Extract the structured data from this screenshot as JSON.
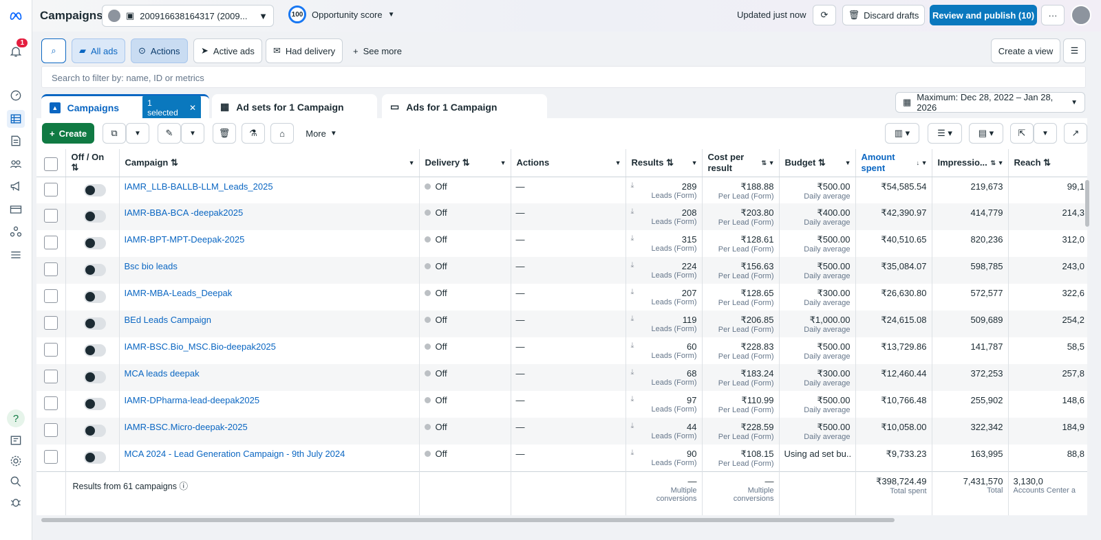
{
  "header": {
    "title": "Campaigns",
    "account_id": "200916638164317 (2009...",
    "opportunity_score": "100",
    "opportunity_label": "Opportunity score",
    "updated": "Updated just now",
    "discard": "Discard drafts",
    "publish": "Review and publish (10)",
    "more": "···"
  },
  "sidebar": {
    "notif_count": "1"
  },
  "filters": {
    "all_ads": "All ads",
    "actions": "Actions",
    "active_ads": "Active ads",
    "had_delivery": "Had delivery",
    "see_more": "See more",
    "create_view": "Create a view"
  },
  "search": {
    "placeholder": "Search to filter by: name, ID or metrics"
  },
  "tabs": {
    "campaigns": "Campaigns",
    "selected": "1 selected",
    "ad_sets": "Ad sets for 1 Campaign",
    "ads": "Ads for 1 Campaign"
  },
  "date_range": "Maximum: Dec 28, 2022 – Jan 28, 2026",
  "toolbar": {
    "create": "Create",
    "more": "More"
  },
  "columns": {
    "offon": "Off / On",
    "campaign": "Campaign",
    "delivery": "Delivery",
    "actions": "Actions",
    "results": "Results",
    "cost": "Cost per result",
    "budget": "Budget",
    "amount": "Amount spent",
    "impressions": "Impressio...",
    "reach": "Reach"
  },
  "rows": [
    {
      "name": "IAMR_LLB-BALLB-LLM_Leads_2025",
      "delivery": "Off",
      "actions": "—",
      "results": "289",
      "results_sub": "Leads (Form)",
      "cost": "₹188.88",
      "cost_sub": "Per Lead (Form)",
      "budget": "₹500.00",
      "budget_sub": "Daily average",
      "amount": "₹54,585.54",
      "impressions": "219,673",
      "reach": "99,1"
    },
    {
      "name": "IAMR-BBA-BCA -deepak2025",
      "delivery": "Off",
      "actions": "—",
      "results": "208",
      "results_sub": "Leads (Form)",
      "cost": "₹203.80",
      "cost_sub": "Per Lead (Form)",
      "budget": "₹400.00",
      "budget_sub": "Daily average",
      "amount": "₹42,390.97",
      "impressions": "414,779",
      "reach": "214,3"
    },
    {
      "name": "IAMR-BPT-MPT-Deepak-2025",
      "delivery": "Off",
      "actions": "—",
      "results": "315",
      "results_sub": "Leads (Form)",
      "cost": "₹128.61",
      "cost_sub": "Per Lead (Form)",
      "budget": "₹500.00",
      "budget_sub": "Daily average",
      "amount": "₹40,510.65",
      "impressions": "820,236",
      "reach": "312,0"
    },
    {
      "name": "Bsc bio leads",
      "delivery": "Off",
      "actions": "—",
      "results": "224",
      "results_sub": "Leads (Form)",
      "cost": "₹156.63",
      "cost_sub": "Per Lead (Form)",
      "budget": "₹500.00",
      "budget_sub": "Daily average",
      "amount": "₹35,084.07",
      "impressions": "598,785",
      "reach": "243,0"
    },
    {
      "name": "IAMR-MBA-Leads_Deepak",
      "delivery": "Off",
      "actions": "—",
      "results": "207",
      "results_sub": "Leads (Form)",
      "cost": "₹128.65",
      "cost_sub": "Per Lead (Form)",
      "budget": "₹300.00",
      "budget_sub": "Daily average",
      "amount": "₹26,630.80",
      "impressions": "572,577",
      "reach": "322,6"
    },
    {
      "name": "BEd Leads Campaign",
      "delivery": "Off",
      "actions": "—",
      "results": "119",
      "results_sub": "Leads (Form)",
      "cost": "₹206.85",
      "cost_sub": "Per Lead (Form)",
      "budget": "₹1,000.00",
      "budget_sub": "Daily average",
      "amount": "₹24,615.08",
      "impressions": "509,689",
      "reach": "254,2"
    },
    {
      "name": "IAMR-BSC.Bio_MSC.Bio-deepak2025",
      "delivery": "Off",
      "actions": "—",
      "results": "60",
      "results_sub": "Leads (Form)",
      "cost": "₹228.83",
      "cost_sub": "Per Lead (Form)",
      "budget": "₹500.00",
      "budget_sub": "Daily average",
      "amount": "₹13,729.86",
      "impressions": "141,787",
      "reach": "58,5"
    },
    {
      "name": "MCA leads deepak",
      "delivery": "Off",
      "actions": "—",
      "results": "68",
      "results_sub": "Leads (Form)",
      "cost": "₹183.24",
      "cost_sub": "Per Lead (Form)",
      "budget": "₹300.00",
      "budget_sub": "Daily average",
      "amount": "₹12,460.44",
      "impressions": "372,253",
      "reach": "257,8"
    },
    {
      "name": "IAMR-DPharma-lead-deepak2025",
      "delivery": "Off",
      "actions": "—",
      "results": "97",
      "results_sub": "Leads (Form)",
      "cost": "₹110.99",
      "cost_sub": "Per Lead (Form)",
      "budget": "₹500.00",
      "budget_sub": "Daily average",
      "amount": "₹10,766.48",
      "impressions": "255,902",
      "reach": "148,6"
    },
    {
      "name": "IAMR-BSC.Micro-deepak-2025",
      "delivery": "Off",
      "actions": "—",
      "results": "44",
      "results_sub": "Leads (Form)",
      "cost": "₹228.59",
      "cost_sub": "Per Lead (Form)",
      "budget": "₹500.00",
      "budget_sub": "Daily average",
      "amount": "₹10,058.00",
      "impressions": "322,342",
      "reach": "184,9"
    },
    {
      "name": "MCA 2024 - Lead Generation Campaign - 9th July 2024",
      "delivery": "Off",
      "actions": "—",
      "results": "90",
      "results_sub": "Leads (Form)",
      "cost": "₹108.15",
      "cost_sub": "Per Lead (Form)",
      "budget": "Using ad set bu...",
      "budget_sub": "",
      "amount": "₹9,733.23",
      "impressions": "163,995",
      "reach": "88,8"
    }
  ],
  "footer": {
    "label": "Results from 61 campaigns",
    "results": "—",
    "results_sub": "Multiple conversions",
    "cost": "—",
    "cost_sub": "Multiple conversions",
    "amount": "₹398,724.49",
    "amount_sub": "Total spent",
    "impressions": "7,431,570",
    "impressions_sub": "Total",
    "reach": "3,130,0",
    "reach_sub": "Accounts Center a"
  }
}
